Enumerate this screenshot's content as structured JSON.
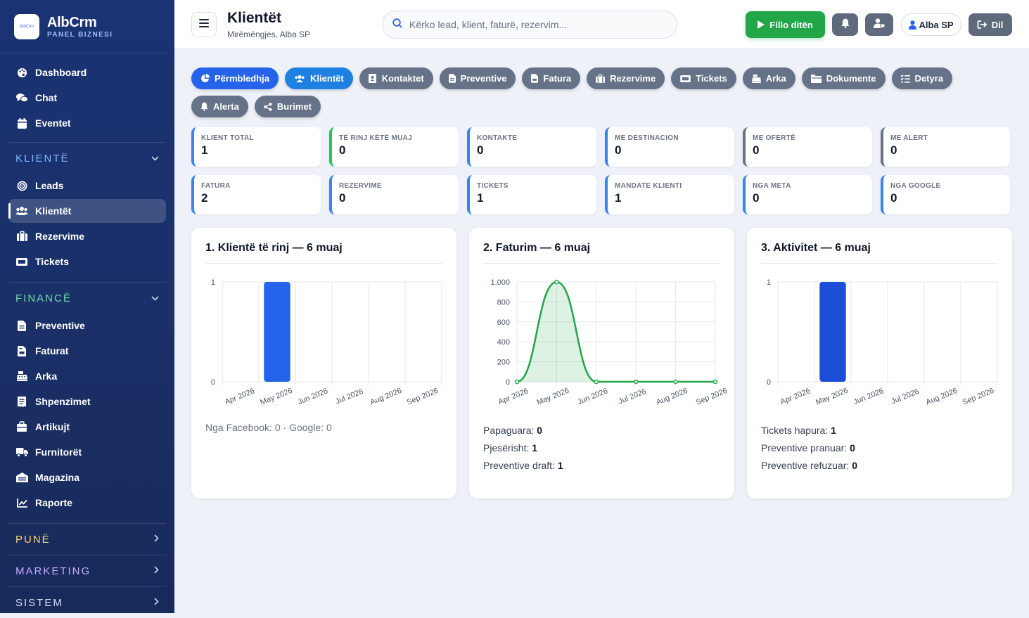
{
  "brand": {
    "name": "AlbCrm",
    "subtitle": "PANEL BIZNESI",
    "logo_text": "AlbCrm"
  },
  "sidebar": {
    "top_items": [
      {
        "label": "Dashboard",
        "icon": "palette-icon"
      },
      {
        "label": "Chat",
        "icon": "chat-icon"
      },
      {
        "label": "Eventet",
        "icon": "calendar-icon"
      }
    ],
    "sections": {
      "klientet": {
        "title": "KLIENTË",
        "items": [
          {
            "label": "Leads",
            "icon": "target-icon"
          },
          {
            "label": "Klientët",
            "icon": "users-icon",
            "active": true
          },
          {
            "label": "Rezervime",
            "icon": "suitcase-icon"
          },
          {
            "label": "Tickets",
            "icon": "ticket-icon"
          }
        ]
      },
      "finance": {
        "title": "FINANCË",
        "items": [
          {
            "label": "Preventive",
            "icon": "document-icon"
          },
          {
            "label": "Faturat",
            "icon": "invoice-icon"
          },
          {
            "label": "Arka",
            "icon": "cash-register-icon"
          },
          {
            "label": "Shpenzimet",
            "icon": "receipt-icon"
          },
          {
            "label": "Artikujt",
            "icon": "box-icon"
          },
          {
            "label": "Furnitorët",
            "icon": "truck-icon"
          },
          {
            "label": "Magazina",
            "icon": "warehouse-icon"
          },
          {
            "label": "Raporte",
            "icon": "chart-line-icon"
          }
        ]
      },
      "pune": {
        "title": "PUNË"
      },
      "marketing": {
        "title": "MARKETING"
      },
      "sistem": {
        "title": "SISTEM"
      }
    }
  },
  "header": {
    "title": "Klientët",
    "greeting": "Mirëmëngjes, Alba SP",
    "search_placeholder": "Kërko lead, klient, faturë, rezervim...",
    "start_day": "Fillo ditën",
    "user": "Alba SP",
    "logout": "Dil"
  },
  "tabs": [
    {
      "label": "Përmbledhja",
      "icon": "chart-pie-icon",
      "style": "primary"
    },
    {
      "label": "Klientët",
      "icon": "users-icon",
      "style": "active"
    },
    {
      "label": "Kontaktet",
      "icon": "address-book-icon"
    },
    {
      "label": "Preventive",
      "icon": "document-icon"
    },
    {
      "label": "Fatura",
      "icon": "invoice-icon"
    },
    {
      "label": "Rezervime",
      "icon": "suitcase-icon"
    },
    {
      "label": "Tickets",
      "icon": "ticket-icon"
    },
    {
      "label": "Arka",
      "icon": "cash-register-icon"
    },
    {
      "label": "Dokumente",
      "icon": "folder-icon"
    },
    {
      "label": "Detyra",
      "icon": "tasks-icon"
    },
    {
      "label": "Alerta",
      "icon": "bell-icon"
    },
    {
      "label": "Burimet",
      "icon": "share-icon"
    }
  ],
  "stats": [
    {
      "label": "KLIENT TOTAL",
      "value": "1",
      "color": "#3b82f6"
    },
    {
      "label": "TË RINJ KËTË MUAJ",
      "value": "0",
      "color": "#22c55e"
    },
    {
      "label": "KONTAKTE",
      "value": "0",
      "color": "#3b82f6"
    },
    {
      "label": "ME DESTINACION",
      "value": "0",
      "color": "#3b82f6"
    },
    {
      "label": "ME OFERTË",
      "value": "0",
      "color": "#6b7280"
    },
    {
      "label": "ME ALERT",
      "value": "0",
      "color": "#6b7280"
    },
    {
      "label": "FATURA",
      "value": "2",
      "color": "#3b82f6"
    },
    {
      "label": "REZERVIME",
      "value": "0",
      "color": "#3b82f6"
    },
    {
      "label": "TICKETS",
      "value": "1",
      "color": "#3b82f6"
    },
    {
      "label": "MANDATE KLIENTI",
      "value": "1",
      "color": "#3b82f6"
    },
    {
      "label": "NGA META",
      "value": "0",
      "color": "#3b82f6"
    },
    {
      "label": "NGA GOOGLE",
      "value": "0",
      "color": "#3b82f6"
    }
  ],
  "panels": [
    {
      "title": "1. Klientë të rinj — 6 muaj",
      "note": "Nga Facebook: 0 · Google: 0",
      "lines": []
    },
    {
      "title": "2. Faturim — 6 muaj",
      "note": "",
      "lines": [
        {
          "label": "Papaguara:",
          "value": "0"
        },
        {
          "label": "Pjesërisht:",
          "value": "1"
        },
        {
          "label": "Preventive draft:",
          "value": "1"
        }
      ]
    },
    {
      "title": "3. Aktivitet — 6 muaj",
      "note": "",
      "lines": [
        {
          "label": "Tickets hapura:",
          "value": "1"
        },
        {
          "label": "Preventive pranuar:",
          "value": "0"
        },
        {
          "label": "Preventive refuzuar:",
          "value": "0"
        }
      ]
    }
  ],
  "chart_data": [
    {
      "type": "bar",
      "categories": [
        "Apr 2026",
        "May 2026",
        "Jun 2026",
        "Jul 2026",
        "Aug 2026",
        "Sep 2026"
      ],
      "values": [
        0,
        1,
        0,
        0,
        0,
        0
      ],
      "ylim": [
        0,
        1
      ],
      "yticks": [
        "0",
        "1"
      ],
      "color": "#2563eb",
      "grid": true
    },
    {
      "type": "area",
      "categories": [
        "Apr 2026",
        "May 2026",
        "Jun 2026",
        "Jul 2026",
        "Aug 2026",
        "Sep 2026"
      ],
      "values": [
        0,
        1000,
        0,
        0,
        0,
        0
      ],
      "ylim": [
        0,
        1000
      ],
      "yticks": [
        "0",
        "200",
        "400",
        "600",
        "800",
        "1,000"
      ],
      "color": "#22a648",
      "grid": true
    },
    {
      "type": "bar",
      "categories": [
        "Apr 2026",
        "May 2026",
        "Jun 2026",
        "Jul 2026",
        "Aug 2026",
        "Sep 2026"
      ],
      "values": [
        0,
        1,
        0,
        0,
        0,
        0
      ],
      "ylim": [
        0,
        1
      ],
      "yticks": [
        "0",
        "1"
      ],
      "color": "#1d4ed8",
      "grid": true
    }
  ]
}
